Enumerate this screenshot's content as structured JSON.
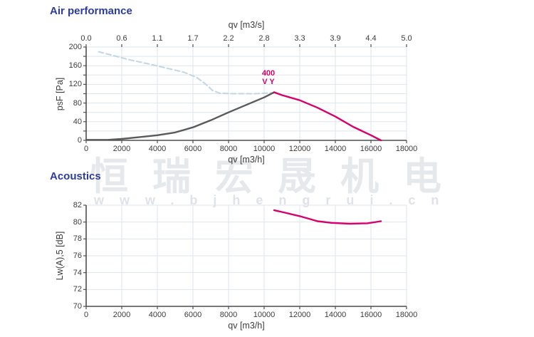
{
  "watermark": {
    "chinese": "恒瑞宏晟机电",
    "url": "www.bjhengrui.cn"
  },
  "chart_data": [
    {
      "type": "line",
      "title": "Air performance",
      "top_axis": {
        "label": "qv [m3/s]",
        "ticks": [
          "0.0",
          "0.6",
          "1.1",
          "1.7",
          "2.2",
          "2.8",
          "3.3",
          "3.9",
          "4.4",
          "5.0"
        ]
      },
      "x_axis": {
        "label": "qv [m3/h]",
        "ticks": [
          0,
          2000,
          4000,
          6000,
          8000,
          10000,
          12000,
          14000,
          16000,
          18000
        ],
        "range": [
          0,
          18000
        ]
      },
      "y_axis": {
        "label": "psF [Pa]",
        "ticks": [
          0,
          40,
          80,
          120,
          160,
          200
        ],
        "range": [
          0,
          200
        ],
        "grid_step": 20
      },
      "annotation": {
        "line1": "400",
        "line2": "V Y",
        "x": 10560,
        "y": 103,
        "color": "#d6006f"
      },
      "legend": "none",
      "grid": "on",
      "series": [
        {
          "name": "system-curve",
          "style": "dashed",
          "color": "#c2d6e4",
          "points": [
            [
              700,
              190
            ],
            [
              1500,
              182
            ],
            [
              2500,
              172
            ],
            [
              3500,
              164
            ],
            [
              4500,
              155
            ],
            [
              5500,
              146
            ],
            [
              6200,
              135
            ],
            [
              6700,
              121
            ],
            [
              7100,
              107
            ],
            [
              7500,
              101
            ],
            [
              8200,
              100
            ],
            [
              9500,
              100
            ],
            [
              10560,
              102
            ]
          ]
        },
        {
          "name": "fan-curve",
          "style": "solid",
          "color": "#5a5a5a",
          "points": [
            [
              0,
              1
            ],
            [
              1200,
              1
            ],
            [
              2000,
              3
            ],
            [
              3000,
              7
            ],
            [
              4000,
              11
            ],
            [
              5000,
              17
            ],
            [
              6000,
              28
            ],
            [
              7000,
              43
            ],
            [
              8000,
              60
            ],
            [
              9000,
              76
            ],
            [
              10000,
              92
            ],
            [
              10560,
              103
            ]
          ]
        },
        {
          "name": "operating-curve",
          "style": "solid",
          "color": "#d6006f",
          "points": [
            [
              10560,
              103
            ],
            [
              11000,
              97
            ],
            [
              12000,
              86
            ],
            [
              13000,
              70
            ],
            [
              14000,
              51
            ],
            [
              15000,
              29
            ],
            [
              16000,
              11
            ],
            [
              16560,
              0
            ]
          ]
        }
      ]
    },
    {
      "type": "line",
      "title": "Acoustics",
      "x_axis": {
        "label": "qv [m3/h]",
        "ticks": [
          0,
          2000,
          4000,
          6000,
          8000,
          10000,
          12000,
          14000,
          16000,
          18000
        ],
        "range": [
          0,
          18000
        ]
      },
      "y_axis": {
        "label": "Lw(A),5 [dB]",
        "ticks": [
          70,
          72,
          74,
          76,
          78,
          80,
          82
        ],
        "range": [
          70,
          82
        ],
        "grid_step": 2
      },
      "legend": "none",
      "grid": "on",
      "series": [
        {
          "name": "noise-curve",
          "style": "solid",
          "color": "#d6006f",
          "points": [
            [
              10560,
              81.4
            ],
            [
              11000,
              81.2
            ],
            [
              12000,
              80.7
            ],
            [
              13000,
              80.1
            ],
            [
              13800,
              79.9
            ],
            [
              14800,
              79.8
            ],
            [
              15800,
              79.85
            ],
            [
              16560,
              80.1
            ]
          ]
        }
      ]
    }
  ],
  "colors": {
    "title_blue": "#2b3c9e",
    "axis_line": "#4d4d4d",
    "tick_text": "#3c3c3c",
    "gridline": "#dde5ec",
    "magenta": "#d6006f",
    "dashed_blue": "#c2d6e4",
    "curve_gray": "#5a5a5a"
  }
}
